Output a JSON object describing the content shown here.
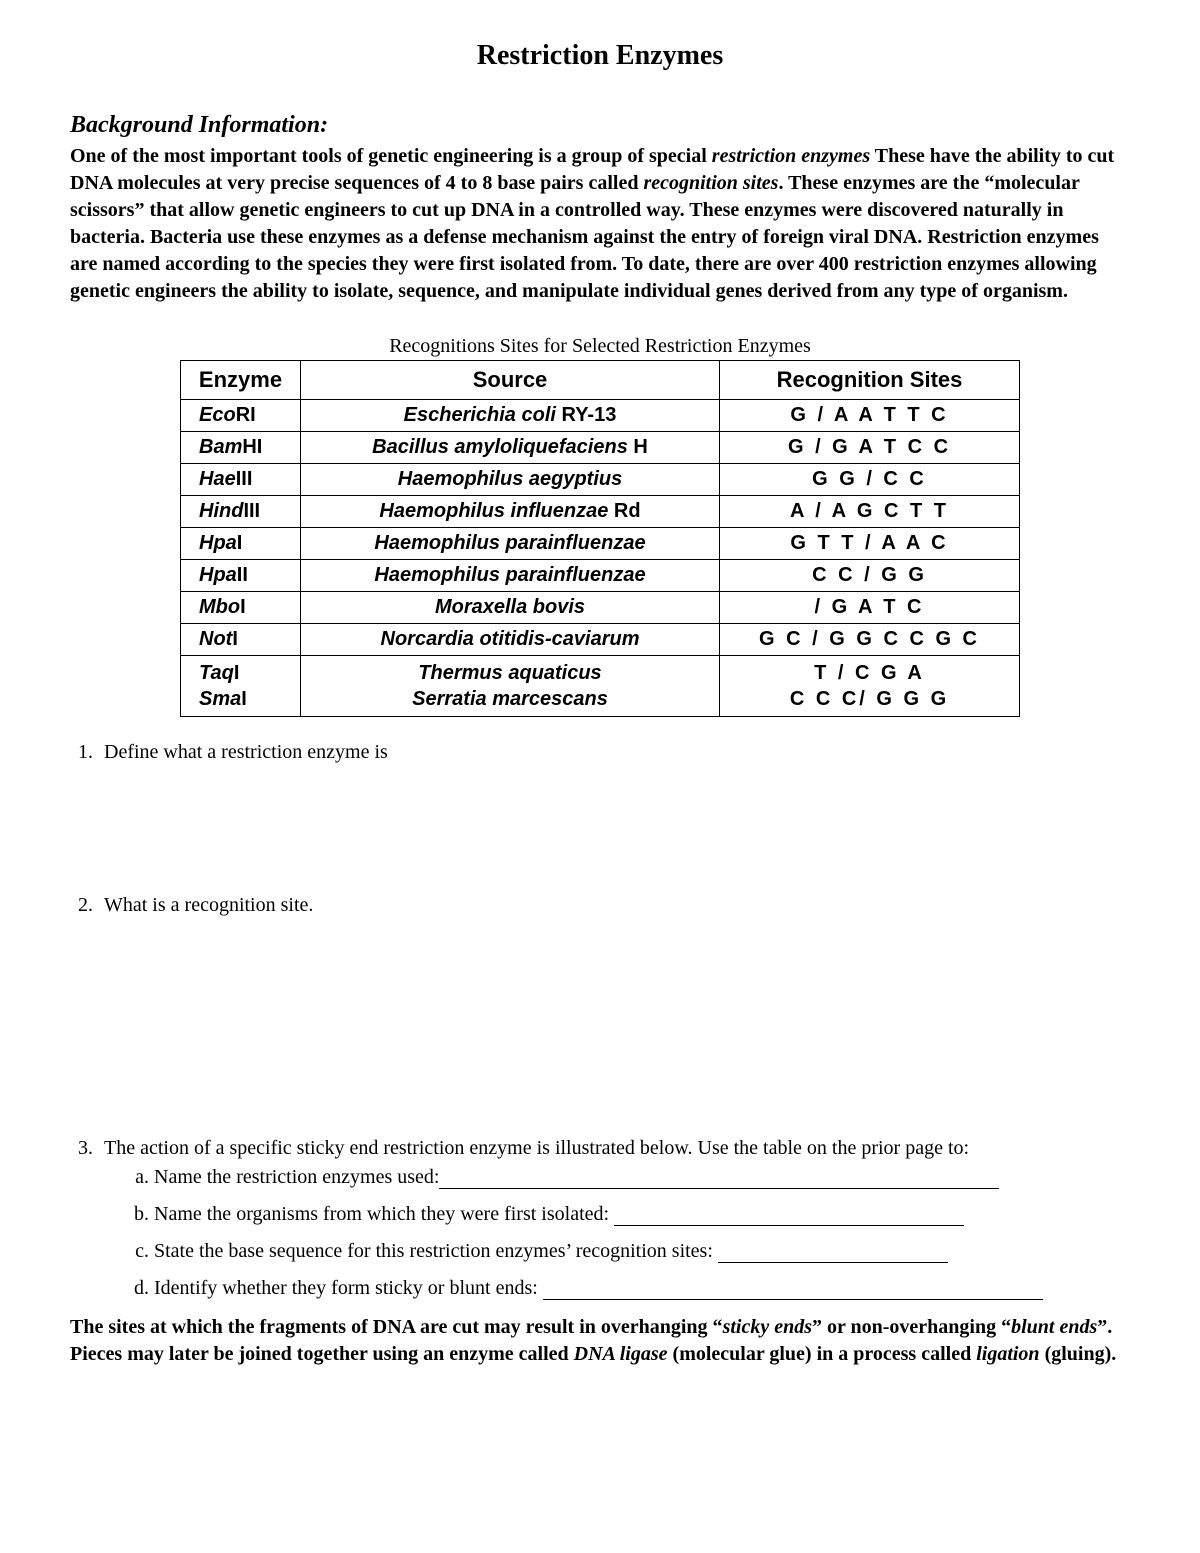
{
  "title": "Restriction Enzymes",
  "background": {
    "heading": "Background Information:",
    "p1a": "One of the most important tools of genetic engineering is a group of special ",
    "p1b": "restriction enzymes",
    "p1c": " These have the ability to cut DNA molecules at very precise sequences of 4 to 8 base pairs called ",
    "p1d": "recognition sites",
    "p1e": ". These enzymes are the “molecular scissors” that allow genetic engineers to cut up DNA in a controlled way.  These enzymes were discovered naturally in bacteria. Bacteria use these enzymes as a defense mechanism against the entry of foreign viral DNA.  Restriction enzymes are named according to the species they were first isolated from. To date, there are over 400 restriction enzymes allowing genetic engineers the ability to isolate, sequence, and manipulate individual genes derived from any type of organism."
  },
  "table": {
    "caption": "Recognitions Sites for Selected Restriction Enzymes",
    "headers": {
      "c1": "Enzyme",
      "c2": "Source",
      "c3": "Recognition Sites"
    },
    "rows": [
      {
        "name_prefix": "Eco",
        "name_suffix": "RI",
        "source_italic": "Escherichia coli",
        "source_suffix": " RY-13",
        "site": "G / A A T T C"
      },
      {
        "name_prefix": "Bam",
        "name_suffix": "HI",
        "source_italic": "Bacillus amyloliquefaciens",
        "source_suffix": " H",
        "site": "G  / G A T C C"
      },
      {
        "name_prefix": "Hae",
        "name_suffix": "III",
        "source_italic": "Haemophilus aegyptius",
        "source_suffix": "",
        "site": "G G / C C"
      },
      {
        "name_prefix": "Hind",
        "name_suffix": "III",
        "source_italic": "Haemophilus influenzae",
        "source_suffix": " Rd",
        "site": "A / A G C T T"
      },
      {
        "name_prefix": "Hpa",
        "name_suffix": "I",
        "source_italic": "Haemophilus parainfluenzae",
        "source_suffix": "",
        "site": "G T T / A A C"
      },
      {
        "name_prefix": "Hpa",
        "name_suffix": "II",
        "source_italic": "Haemophilus parainfluenzae",
        "source_suffix": "",
        "site": "C C / G G"
      },
      {
        "name_prefix": "Mbo",
        "name_suffix": "I",
        "source_italic": "Moraxella bovis",
        "source_suffix": "",
        "site": "/ G A T C"
      },
      {
        "name_prefix": "Not",
        "name_suffix": "I",
        "source_italic": "Norcardia otitidis-caviarum",
        "source_suffix": "",
        "site": "G C / G G C C G C"
      }
    ],
    "last": {
      "name1_prefix": "Taq",
      "name1_suffix": "I",
      "name2_prefix": "Sma",
      "name2_suffix": "I",
      "source1": "Thermus aquaticus",
      "source2": "Serratia marcescans",
      "site1": "T / C G A",
      "site2": "C C C/ G G G"
    }
  },
  "questions": {
    "q1": "Define what a restriction enzyme is",
    "q2": "What is a recognition site.",
    "q3_lead": "The action of a specific sticky end restriction enzyme is illustrated below.  Use the table on the prior page to:",
    "q3a": "Name the restriction enzymes used:",
    "q3b": "Name the organisms from which they were first isolated: ",
    "q3c": "State the base sequence for this restriction enzymes’ recognition sites: ",
    "q3d": "Identify whether they form sticky or blunt ends: "
  },
  "footer": {
    "a": "The sites at which the fragments of DNA are cut may result in overhanging “",
    "b": "sticky ends",
    "c": "” or non-overhanging “",
    "d": "blunt ends",
    "e": "”. Pieces may later be joined together using an enzyme called ",
    "f": "DNA ligase",
    "g": " (molecular glue) in a process called ",
    "h": "ligation",
    "i": " (gluing)."
  },
  "layout": {
    "blank_widths": {
      "a": 560,
      "b": 350,
      "c": 230,
      "d": 500
    }
  }
}
